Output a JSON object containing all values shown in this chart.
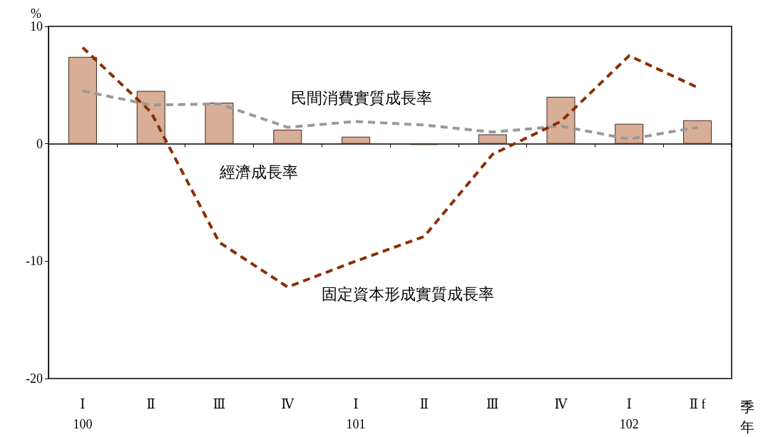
{
  "chart_data": {
    "type": "bar",
    "ylabel": "%",
    "xlabel": "季年",
    "categories": [
      "Ⅰ\n100",
      "Ⅱ",
      "Ⅲ",
      "Ⅳ",
      "Ⅰ\n101",
      "Ⅱ",
      "Ⅲ",
      "Ⅳ",
      "Ⅰ\n102",
      "Ⅱ f"
    ],
    "ylim": [
      -20,
      10
    ],
    "yticks": [
      -20,
      -10,
      0,
      10
    ],
    "legend": false,
    "series": [
      {
        "name": "經濟成長率",
        "color": "#d9ae96",
        "values": [
          7.4,
          4.5,
          3.5,
          1.2,
          0.6,
          -0.1,
          0.8,
          4.0,
          1.7,
          2.0
        ]
      },
      {
        "name": "民間消費實質成長率",
        "type": "line",
        "color": "#999999",
        "line_style": "dashed",
        "values": [
          4.5,
          3.3,
          3.4,
          1.4,
          1.9,
          1.6,
          1.0,
          1.5,
          0.4,
          1.4
        ]
      },
      {
        "name": "固定資本形成實質成長率",
        "type": "line",
        "color": "#8b2e00",
        "line_style": "dashed",
        "values": [
          8.2,
          2.7,
          -8.4,
          -12.2,
          -10.0,
          -7.9,
          -0.9,
          1.9,
          7.5,
          4.8
        ]
      }
    ]
  }
}
